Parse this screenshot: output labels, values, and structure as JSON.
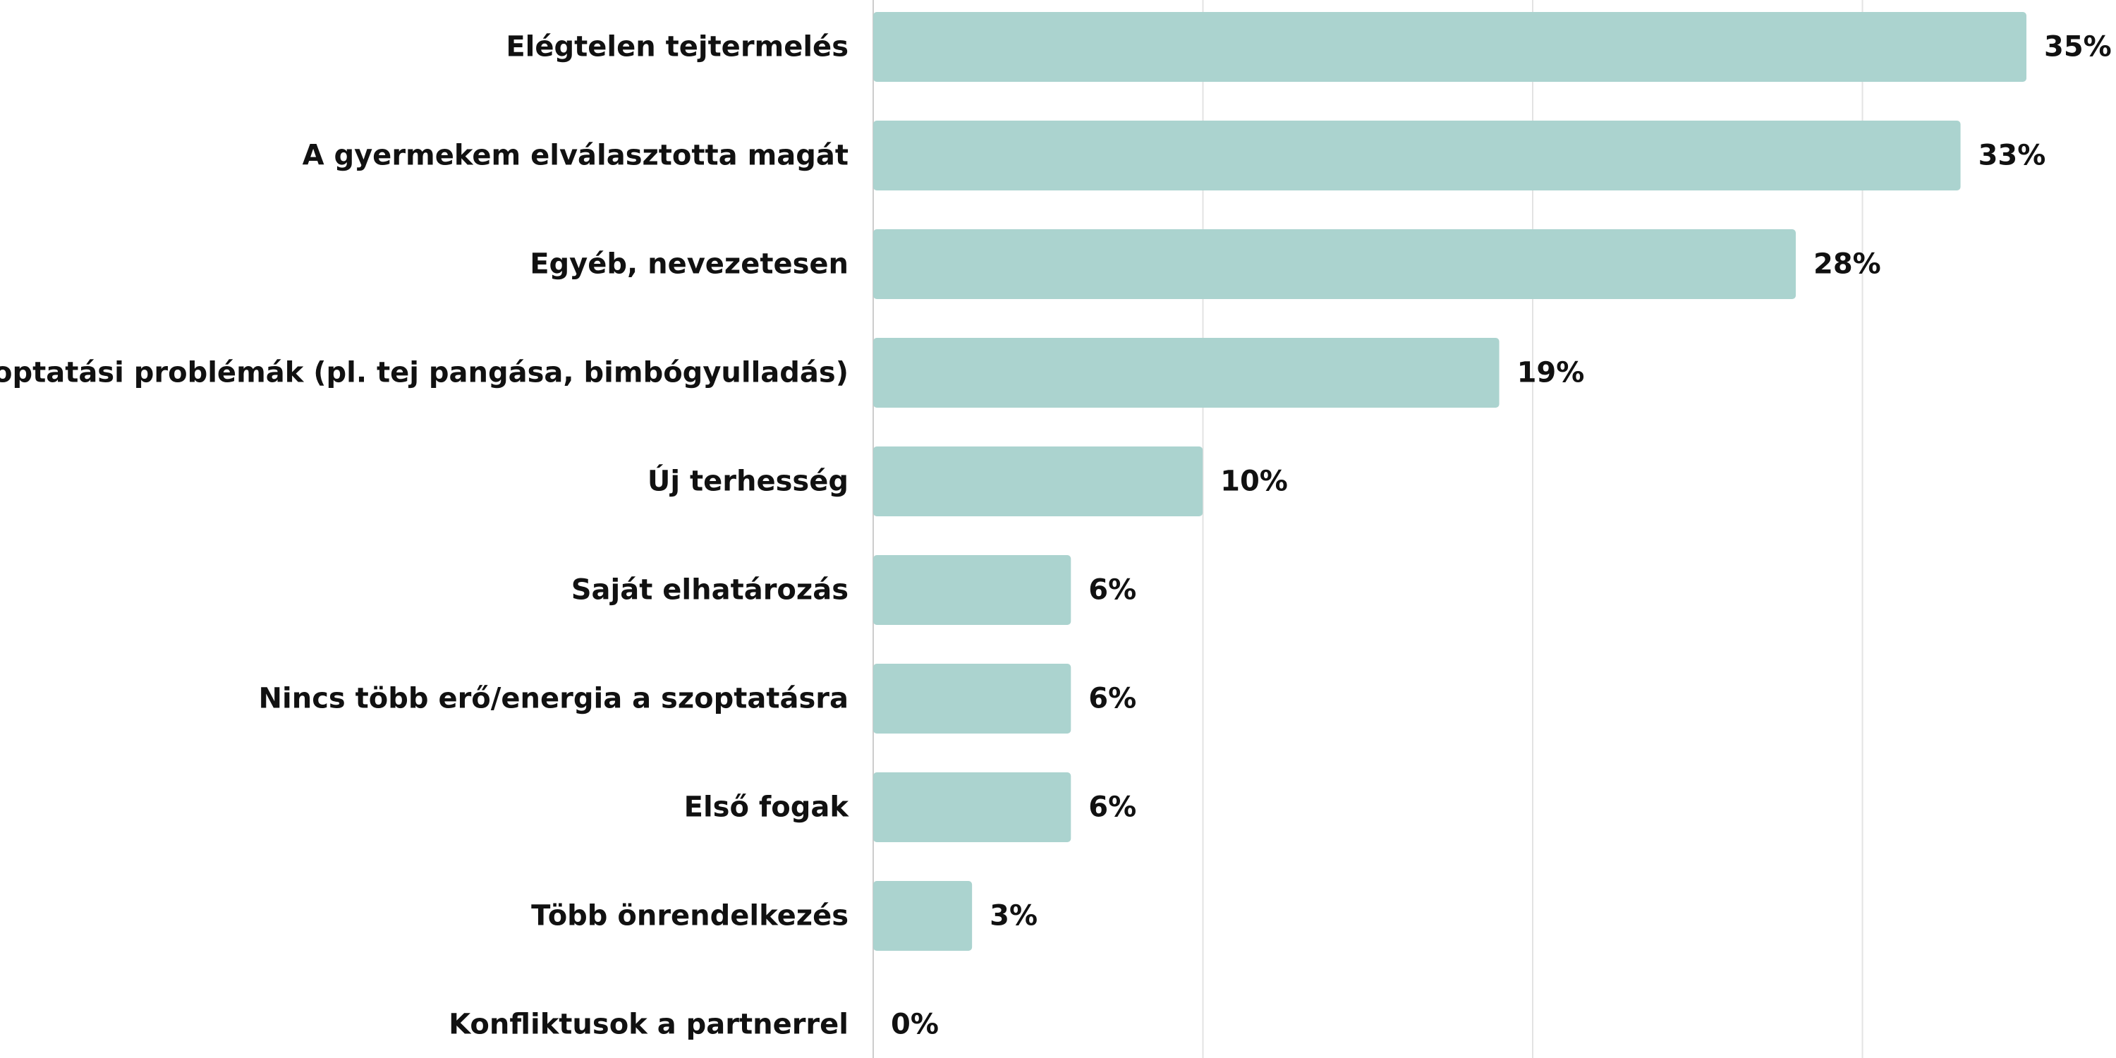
{
  "chart_data": {
    "type": "bar",
    "orientation": "horizontal",
    "categories": [
      "Elégtelen tejtermelés",
      "A gyermekem elválasztotta magát",
      "Egyéb, nevezetesen",
      "Szoptatási problémák (pl. tej pangása, bimbógyulladás)",
      "Új terhesség",
      "Saját elhatározás",
      "Nincs több erő/energia a szoptatásra",
      "Első fogak",
      "Több önrendelkezés",
      "Konfliktusok a partnerrel"
    ],
    "values": [
      35,
      33,
      28,
      19,
      10,
      6,
      6,
      6,
      3,
      0
    ],
    "value_labels": [
      "35%",
      "33%",
      "28%",
      "19%",
      "10%",
      "6%",
      "6%",
      "6%",
      "3%",
      "0%"
    ],
    "title": "",
    "xlabel": "",
    "ylabel": "",
    "xlim": [
      0,
      35
    ],
    "grid": true,
    "colors": {
      "bar": "#abd3cf",
      "grid": "#e3e3e3",
      "axis": "#cccccc",
      "text": "#111111"
    }
  }
}
